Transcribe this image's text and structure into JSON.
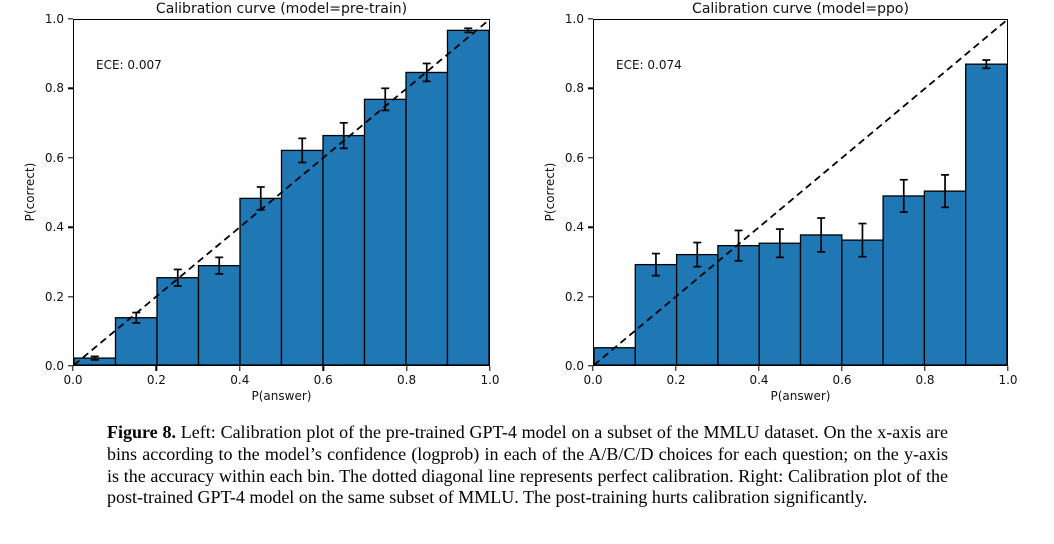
{
  "colors": {
    "bar_fill": "#1f77b4",
    "bar_edge": "#000000",
    "diagonal": "#000000",
    "error_bar": "#000000",
    "background": "#ffffff"
  },
  "chart_data": [
    {
      "type": "bar",
      "title": "Calibration curve (model=pre-train)",
      "annotation": "ECE: 0.007",
      "xlabel": "P(answer)",
      "ylabel": "P(correct)",
      "xlim": [
        0.0,
        1.0
      ],
      "ylim": [
        0.0,
        1.0
      ],
      "bin_width": 0.1,
      "bin_centers": [
        0.05,
        0.15,
        0.25,
        0.35,
        0.45,
        0.55,
        0.65,
        0.75,
        0.85,
        0.95
      ],
      "values": [
        0.02,
        0.137,
        0.253,
        0.288,
        0.483,
        0.622,
        0.665,
        0.77,
        0.848,
        0.97
      ],
      "errors": [
        0.005,
        0.015,
        0.024,
        0.024,
        0.033,
        0.035,
        0.037,
        0.032,
        0.026,
        0.006
      ],
      "x_ticks": [
        "0.0",
        "0.2",
        "0.4",
        "0.6",
        "0.8",
        "1.0"
      ],
      "y_ticks": [
        "0.0",
        "0.2",
        "0.4",
        "0.6",
        "0.8",
        "1.0"
      ],
      "grid": false,
      "diagonal": {
        "style": "dashed",
        "from": [
          0,
          0
        ],
        "to": [
          1,
          1
        ],
        "meaning": "perfect calibration"
      }
    },
    {
      "type": "bar",
      "title": "Calibration curve (model=ppo)",
      "annotation": "ECE: 0.074",
      "xlabel": "P(answer)",
      "ylabel": "P(correct)",
      "xlim": [
        0.0,
        1.0
      ],
      "ylim": [
        0.0,
        1.0
      ],
      "bin_width": 0.1,
      "bin_centers": [
        0.05,
        0.15,
        0.25,
        0.35,
        0.45,
        0.55,
        0.65,
        0.75,
        0.85,
        0.95
      ],
      "values": [
        0.05,
        0.291,
        0.32,
        0.346,
        0.353,
        0.377,
        0.362,
        0.49,
        0.504,
        0.872
      ],
      "errors": [
        0,
        0.032,
        0.035,
        0.044,
        0.041,
        0.049,
        0.048,
        0.047,
        0.047,
        0.012
      ],
      "x_ticks": [
        "0.0",
        "0.2",
        "0.4",
        "0.6",
        "0.8",
        "1.0"
      ],
      "y_ticks": [
        "0.0",
        "0.2",
        "0.4",
        "0.6",
        "0.8",
        "1.0"
      ],
      "grid": false,
      "diagonal": {
        "style": "dashed",
        "from": [
          0,
          0
        ],
        "to": [
          1,
          1
        ],
        "meaning": "perfect calibration"
      }
    }
  ],
  "caption": {
    "label": "Figure 8.",
    "text": " Left: Calibration plot of the pre-trained GPT-4 model on a subset of the MMLU dataset. On the x-axis are bins according to the model’s confidence (logprob) in each of the A/B/C/D choices for each question; on the y-axis is the accuracy within each bin. The dotted diagonal line represents perfect calibration. Right: Calibration plot of the post-trained GPT-4 model on the same subset of MMLU. The post-training hurts calibration significantly."
  }
}
